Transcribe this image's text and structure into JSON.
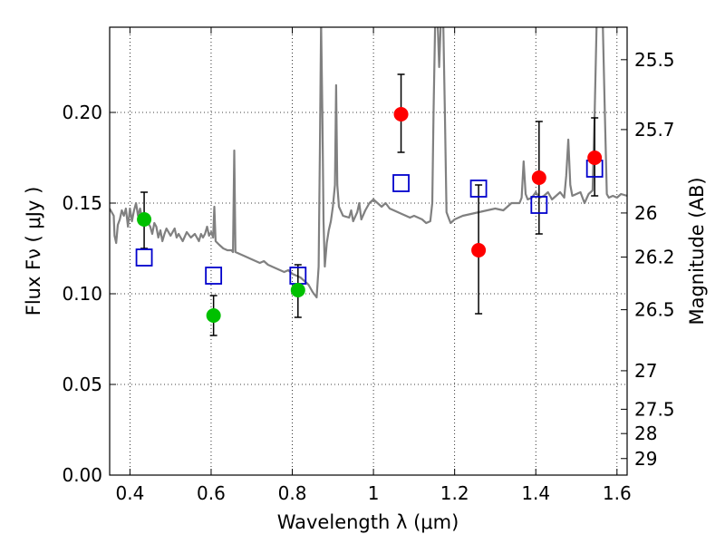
{
  "chart_data": {
    "type": "scatter",
    "xlabel": "Wavelength  λ (μm)",
    "ylabel": "Flux  Fν  ( μJy )",
    "y2label": "Magnitude (AB)",
    "xlim": [
      0.35,
      1.625
    ],
    "ylim": [
      0.0,
      0.247
    ],
    "grid": true,
    "x_ticks": [
      {
        "value": 0.4,
        "label": "0.4"
      },
      {
        "value": 0.6,
        "label": "0.6"
      },
      {
        "value": 0.8,
        "label": "0.8"
      },
      {
        "value": 1.0,
        "label": "1"
      },
      {
        "value": 1.2,
        "label": "1.2"
      },
      {
        "value": 1.4,
        "label": "1.4"
      },
      {
        "value": 1.6,
        "label": "1.6"
      }
    ],
    "y_ticks": [
      {
        "value": 0.0,
        "label": "0.00"
      },
      {
        "value": 0.05,
        "label": "0.05"
      },
      {
        "value": 0.1,
        "label": "0.10"
      },
      {
        "value": 0.15,
        "label": "0.15"
      },
      {
        "value": 0.2,
        "label": "0.20"
      }
    ],
    "y2_ticks": [
      {
        "value": 25.5,
        "label": "25.5"
      },
      {
        "value": 25.7,
        "label": "25.7"
      },
      {
        "value": 26.0,
        "label": "26"
      },
      {
        "value": 26.2,
        "label": "26.2"
      },
      {
        "value": 26.5,
        "label": "26.5"
      },
      {
        "value": 27.0,
        "label": "27"
      },
      {
        "value": 27.5,
        "label": "27.5"
      },
      {
        "value": 28.0,
        "label": "28"
      },
      {
        "value": 29.0,
        "label": "29"
      }
    ],
    "model_spectrum": {
      "color": "#808080",
      "points": [
        [
          0.35,
          0.147
        ],
        [
          0.36,
          0.143
        ],
        [
          0.362,
          0.132
        ],
        [
          0.366,
          0.128
        ],
        [
          0.37,
          0.138
        ],
        [
          0.375,
          0.141
        ],
        [
          0.38,
          0.146
        ],
        [
          0.385,
          0.143
        ],
        [
          0.39,
          0.147
        ],
        [
          0.395,
          0.137
        ],
        [
          0.4,
          0.147
        ],
        [
          0.405,
          0.14
        ],
        [
          0.41,
          0.146
        ],
        [
          0.415,
          0.15
        ],
        [
          0.42,
          0.143
        ],
        [
          0.425,
          0.147
        ],
        [
          0.43,
          0.141
        ],
        [
          0.435,
          0.138
        ],
        [
          0.44,
          0.142
        ],
        [
          0.445,
          0.139
        ],
        [
          0.45,
          0.137
        ],
        [
          0.455,
          0.133
        ],
        [
          0.46,
          0.139
        ],
        [
          0.465,
          0.137
        ],
        [
          0.47,
          0.131
        ],
        [
          0.475,
          0.135
        ],
        [
          0.48,
          0.129
        ],
        [
          0.485,
          0.133
        ],
        [
          0.49,
          0.136
        ],
        [
          0.5,
          0.132
        ],
        [
          0.51,
          0.136
        ],
        [
          0.515,
          0.131
        ],
        [
          0.52,
          0.133
        ],
        [
          0.53,
          0.129
        ],
        [
          0.54,
          0.134
        ],
        [
          0.55,
          0.131
        ],
        [
          0.56,
          0.133
        ],
        [
          0.57,
          0.129
        ],
        [
          0.575,
          0.133
        ],
        [
          0.58,
          0.131
        ],
        [
          0.585,
          0.133
        ],
        [
          0.59,
          0.137
        ],
        [
          0.595,
          0.132
        ],
        [
          0.6,
          0.134
        ],
        [
          0.605,
          0.131
        ],
        [
          0.608,
          0.148
        ],
        [
          0.611,
          0.129
        ],
        [
          0.62,
          0.127
        ],
        [
          0.63,
          0.125
        ],
        [
          0.64,
          0.124
        ],
        [
          0.65,
          0.124
        ],
        [
          0.654,
          0.123
        ],
        [
          0.657,
          0.179
        ],
        [
          0.66,
          0.123
        ],
        [
          0.67,
          0.122
        ],
        [
          0.68,
          0.121
        ],
        [
          0.69,
          0.12
        ],
        [
          0.7,
          0.119
        ],
        [
          0.71,
          0.118
        ],
        [
          0.72,
          0.117
        ],
        [
          0.73,
          0.118
        ],
        [
          0.74,
          0.116
        ],
        [
          0.75,
          0.115
        ],
        [
          0.76,
          0.114
        ],
        [
          0.77,
          0.113
        ],
        [
          0.78,
          0.112
        ],
        [
          0.79,
          0.113
        ],
        [
          0.8,
          0.111
        ],
        [
          0.81,
          0.11
        ],
        [
          0.82,
          0.109
        ],
        [
          0.83,
          0.107
        ],
        [
          0.84,
          0.105
        ],
        [
          0.85,
          0.101
        ],
        [
          0.86,
          0.098
        ],
        [
          0.865,
          0.115
        ],
        [
          0.868,
          0.18
        ],
        [
          0.871,
          0.25
        ],
        [
          0.874,
          0.2
        ],
        [
          0.877,
          0.14
        ],
        [
          0.88,
          0.115
        ],
        [
          0.885,
          0.128
        ],
        [
          0.89,
          0.135
        ],
        [
          0.895,
          0.14
        ],
        [
          0.9,
          0.148
        ],
        [
          0.905,
          0.16
        ],
        [
          0.908,
          0.215
        ],
        [
          0.911,
          0.16
        ],
        [
          0.915,
          0.148
        ],
        [
          0.925,
          0.143
        ],
        [
          0.94,
          0.142
        ],
        [
          0.945,
          0.146
        ],
        [
          0.95,
          0.14
        ],
        [
          0.96,
          0.145
        ],
        [
          0.965,
          0.15
        ],
        [
          0.97,
          0.141
        ],
        [
          0.98,
          0.146
        ],
        [
          0.99,
          0.15
        ],
        [
          1.0,
          0.152
        ],
        [
          1.01,
          0.15
        ],
        [
          1.02,
          0.148
        ],
        [
          1.03,
          0.15
        ],
        [
          1.04,
          0.147
        ],
        [
          1.05,
          0.146
        ],
        [
          1.07,
          0.144
        ],
        [
          1.09,
          0.142
        ],
        [
          1.1,
          0.143
        ],
        [
          1.12,
          0.141
        ],
        [
          1.13,
          0.139
        ],
        [
          1.14,
          0.14
        ],
        [
          1.145,
          0.15
        ],
        [
          1.148,
          0.2
        ],
        [
          1.152,
          0.25
        ],
        [
          1.158,
          0.25
        ],
        [
          1.162,
          0.225
        ],
        [
          1.166,
          0.25
        ],
        [
          1.172,
          0.25
        ],
        [
          1.176,
          0.2
        ],
        [
          1.18,
          0.145
        ],
        [
          1.185,
          0.142
        ],
        [
          1.19,
          0.139
        ],
        [
          1.2,
          0.141
        ],
        [
          1.22,
          0.143
        ],
        [
          1.24,
          0.144
        ],
        [
          1.26,
          0.145
        ],
        [
          1.28,
          0.146
        ],
        [
          1.3,
          0.147
        ],
        [
          1.32,
          0.146
        ],
        [
          1.34,
          0.15
        ],
        [
          1.36,
          0.15
        ],
        [
          1.365,
          0.153
        ],
        [
          1.37,
          0.173
        ],
        [
          1.375,
          0.155
        ],
        [
          1.38,
          0.152
        ],
        [
          1.39,
          0.153
        ],
        [
          1.4,
          0.156
        ],
        [
          1.41,
          0.153
        ],
        [
          1.42,
          0.154
        ],
        [
          1.43,
          0.156
        ],
        [
          1.44,
          0.152
        ],
        [
          1.45,
          0.154
        ],
        [
          1.46,
          0.156
        ],
        [
          1.47,
          0.153
        ],
        [
          1.475,
          0.165
        ],
        [
          1.48,
          0.185
        ],
        [
          1.485,
          0.16
        ],
        [
          1.49,
          0.154
        ],
        [
          1.5,
          0.155
        ],
        [
          1.51,
          0.156
        ],
        [
          1.52,
          0.15
        ],
        [
          1.53,
          0.155
        ],
        [
          1.54,
          0.157
        ],
        [
          1.545,
          0.2
        ],
        [
          1.55,
          0.25
        ],
        [
          1.565,
          0.25
        ],
        [
          1.57,
          0.2
        ],
        [
          1.575,
          0.155
        ],
        [
          1.58,
          0.153
        ],
        [
          1.59,
          0.154
        ],
        [
          1.6,
          0.153
        ],
        [
          1.61,
          0.155
        ],
        [
          1.625,
          0.154
        ]
      ]
    },
    "series": [
      {
        "color": "#00c000",
        "marker": "circle",
        "points": [
          {
            "x": 0.435,
            "y": 0.141,
            "err_low": 0.125,
            "err_high": 0.156
          },
          {
            "x": 0.606,
            "y": 0.088,
            "err_low": 0.077,
            "err_high": 0.099
          },
          {
            "x": 0.814,
            "y": 0.102,
            "err_low": 0.087,
            "err_high": 0.116
          }
        ]
      },
      {
        "color": "#ff0000",
        "marker": "circle",
        "points": [
          {
            "x": 1.068,
            "y": 0.199,
            "err_low": 0.178,
            "err_high": 0.221
          },
          {
            "x": 1.259,
            "y": 0.124,
            "err_low": 0.089,
            "err_high": 0.16
          },
          {
            "x": 1.408,
            "y": 0.164,
            "err_low": 0.133,
            "err_high": 0.195
          },
          {
            "x": 1.545,
            "y": 0.175,
            "err_low": 0.154,
            "err_high": 0.197
          }
        ]
      },
      {
        "color": "#0000cc",
        "marker": "square",
        "points": [
          {
            "x": 0.435,
            "y": 0.12
          },
          {
            "x": 0.606,
            "y": 0.11
          },
          {
            "x": 0.814,
            "y": 0.11
          },
          {
            "x": 1.068,
            "y": 0.161
          },
          {
            "x": 1.259,
            "y": 0.158
          },
          {
            "x": 1.408,
            "y": 0.149
          },
          {
            "x": 1.545,
            "y": 0.169
          }
        ]
      }
    ]
  }
}
